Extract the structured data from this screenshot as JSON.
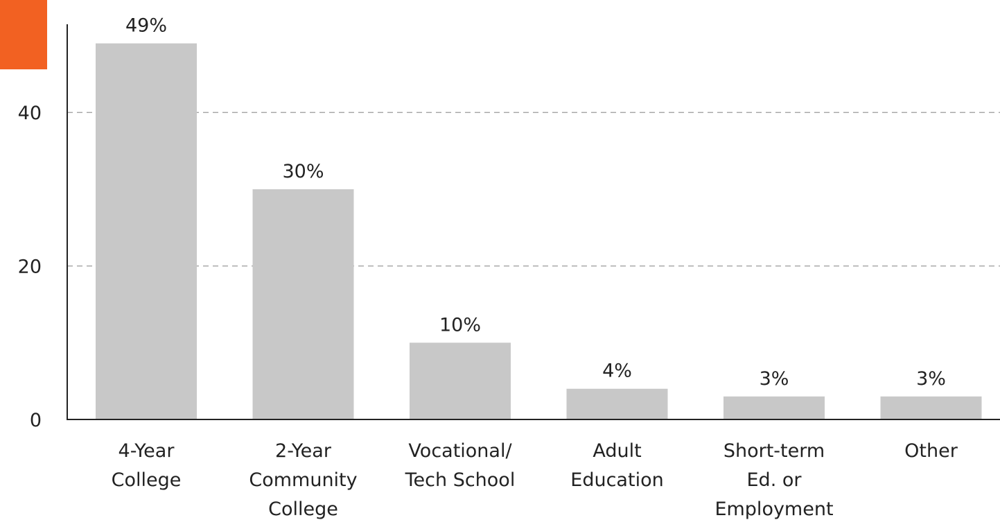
{
  "colors": {
    "accent": "#f26122",
    "bar": "#c8c8c8",
    "axis": "#222222",
    "grid": "#a8a8a8"
  },
  "chart_data": {
    "type": "bar",
    "title": "",
    "xlabel": "",
    "ylabel": "",
    "ylim": [
      0,
      49
    ],
    "yticks": [
      0,
      20,
      40
    ],
    "grid": true,
    "legend": "none",
    "categories": [
      [
        "4-Year",
        "College"
      ],
      [
        "2-Year",
        "Community",
        "College"
      ],
      [
        "Vocational/",
        "Tech School"
      ],
      [
        "Adult",
        "Education"
      ],
      [
        "Short-term",
        "Ed. or",
        "Employment"
      ],
      [
        "Other"
      ]
    ],
    "values": [
      49,
      30,
      10,
      4,
      3,
      3
    ],
    "data_labels": [
      "49%",
      "30%",
      "10%",
      "4%",
      "3%",
      "3%"
    ]
  }
}
